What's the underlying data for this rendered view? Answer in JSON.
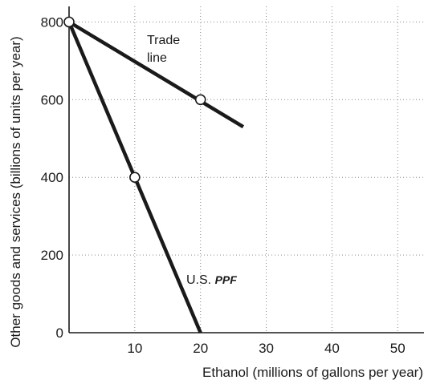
{
  "chart_data": {
    "type": "line",
    "xlabel": "Ethanol (millions of gallons per year)",
    "ylabel": "Other goods and services (billions of units per year)",
    "xlim": [
      0,
      54
    ],
    "ylim": [
      0,
      840
    ],
    "xticks": [
      10,
      20,
      30,
      40,
      50
    ],
    "yticks": [
      0,
      200,
      400,
      600,
      800
    ],
    "grid": true,
    "series": [
      {
        "name": "U.S. PPF",
        "label_prefix": "U.S.",
        "label_italic": "PPF",
        "x": [
          0,
          20
        ],
        "y": [
          800,
          0
        ],
        "color": "#1a1a1a"
      },
      {
        "name": "Trade line",
        "label_line1": "Trade",
        "label_line2": "line",
        "x": [
          0,
          26.5
        ],
        "y": [
          800,
          530
        ],
        "color": "#1a1a1a"
      }
    ],
    "points": [
      {
        "x": 0,
        "y": 800
      },
      {
        "x": 10,
        "y": 400
      },
      {
        "x": 20,
        "y": 600
      }
    ]
  }
}
